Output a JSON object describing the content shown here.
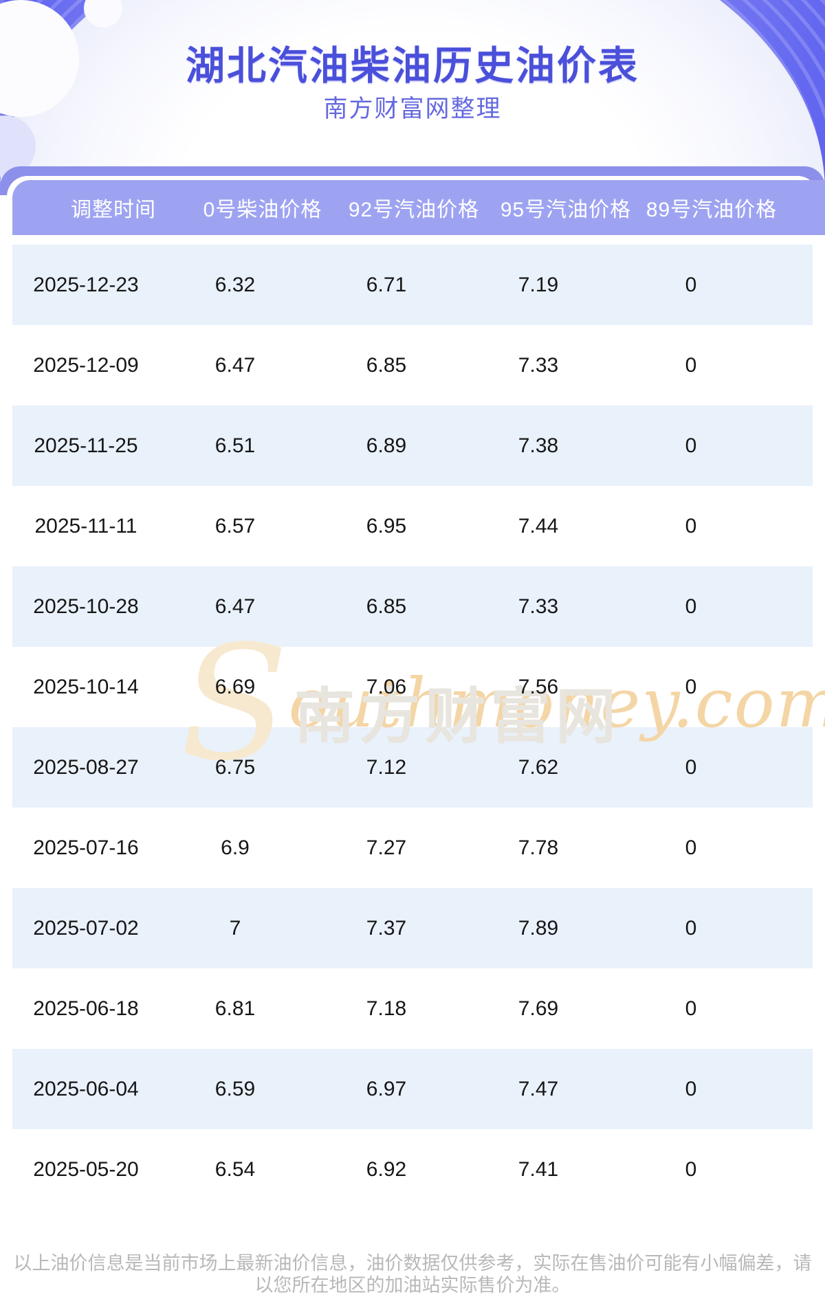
{
  "banner": {
    "title": "湖北汽油柴油历史油价表",
    "subtitle": "南方财富网整理"
  },
  "table": {
    "headers": [
      "调整时间",
      "0号柴油价格",
      "92号汽油价格",
      "95号汽油价格",
      "89号汽油价格"
    ],
    "rows": [
      [
        "2025-12-23",
        "6.32",
        "6.71",
        "7.19",
        "0"
      ],
      [
        "2025-12-09",
        "6.47",
        "6.85",
        "7.33",
        "0"
      ],
      [
        "2025-11-25",
        "6.51",
        "6.89",
        "7.38",
        "0"
      ],
      [
        "2025-11-11",
        "6.57",
        "6.95",
        "7.44",
        "0"
      ],
      [
        "2025-10-28",
        "6.47",
        "6.85",
        "7.33",
        "0"
      ],
      [
        "2025-10-14",
        "6.69",
        "7.06",
        "7.56",
        "0"
      ],
      [
        "2025-08-27",
        "6.75",
        "7.12",
        "7.62",
        "0"
      ],
      [
        "2025-07-16",
        "6.9",
        "7.27",
        "7.78",
        "0"
      ],
      [
        "2025-07-02",
        "7",
        "7.37",
        "7.89",
        "0"
      ],
      [
        "2025-06-18",
        "6.81",
        "7.18",
        "7.69",
        "0"
      ],
      [
        "2025-06-04",
        "6.59",
        "6.97",
        "7.47",
        "0"
      ],
      [
        "2025-05-20",
        "6.54",
        "6.92",
        "7.41",
        "0"
      ]
    ]
  },
  "watermark": {
    "brand_cn": "南方财富网",
    "brand_en_initial": "S",
    "brand_en_rest": "outhmoney.com"
  },
  "footer": {
    "disclaimer": "以上油价信息是当前市场上最新油价信息，油价数据仅供参考，实际在售油价可能有小幅偏差，请以您所在地区的加油站实际售价为准。"
  },
  "colors": {
    "banner_purple": "#7478f2",
    "band_purple": "#8c90ea",
    "header_purple": "#9ea3f1",
    "row_blue": "#e9f1fb",
    "title_blue": "#4a50da",
    "subtitle_purple": "#6468de",
    "footer_gray": "#b8b8b8",
    "watermark_orange": "#f4d5a5"
  }
}
